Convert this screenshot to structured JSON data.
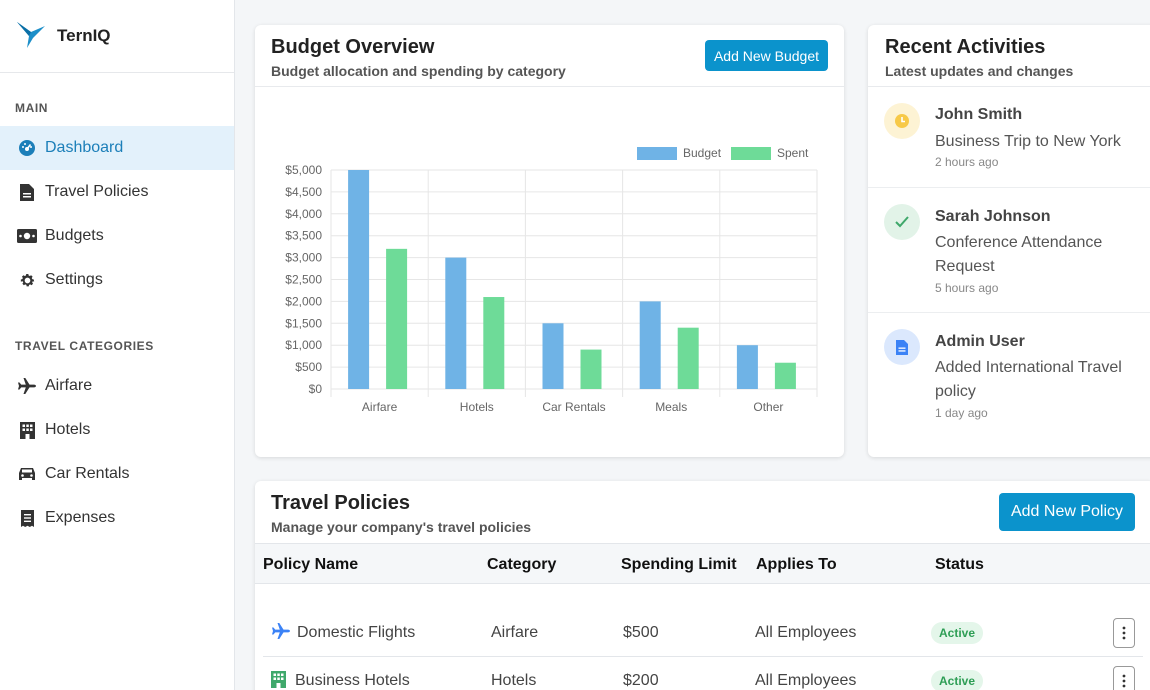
{
  "app": {
    "name": "TernIQ"
  },
  "sidebar": {
    "main_label": "MAIN",
    "main_items": [
      {
        "label": "Dashboard",
        "icon": "dashboard-icon",
        "active": true
      },
      {
        "label": "Travel Policies",
        "icon": "document-icon"
      },
      {
        "label": "Budgets",
        "icon": "money-icon"
      },
      {
        "label": "Settings",
        "icon": "gear-icon"
      }
    ],
    "categories_label": "TRAVEL CATEGORIES",
    "category_items": [
      {
        "label": "Airfare",
        "icon": "plane-icon"
      },
      {
        "label": "Hotels",
        "icon": "hotel-icon"
      },
      {
        "label": "Car Rentals",
        "icon": "car-icon"
      },
      {
        "label": "Expenses",
        "icon": "receipt-icon"
      }
    ]
  },
  "budget": {
    "title": "Budget Overview",
    "subtitle": "Budget allocation and spending by category",
    "add_button": "Add New Budget"
  },
  "chart_data": {
    "type": "bar",
    "categories": [
      "Airfare",
      "Hotels",
      "Car Rentals",
      "Meals",
      "Other"
    ],
    "series": [
      {
        "name": "Budget",
        "values": [
          5000,
          3000,
          1500,
          2000,
          1000
        ],
        "color": "#6fb3e6"
      },
      {
        "name": "Spent",
        "values": [
          3200,
          2100,
          900,
          1400,
          600
        ],
        "color": "#6edb98"
      }
    ],
    "ylim": [
      0,
      5000
    ],
    "yticks": [
      "$0",
      "$500",
      "$1,000",
      "$1,500",
      "$2,000",
      "$2,500",
      "$3,000",
      "$3,500",
      "$4,000",
      "$4,500",
      "$5,000"
    ],
    "ytick_values": [
      0,
      500,
      1000,
      1500,
      2000,
      2500,
      3000,
      3500,
      4000,
      4500,
      5000
    ],
    "legend_position": "top-right",
    "grid": true
  },
  "activities": {
    "title": "Recent Activities",
    "subtitle": "Latest updates and changes",
    "items": [
      {
        "name": "John Smith",
        "desc": "Business Trip to New York",
        "time": "2 hours ago",
        "icon": "clock-icon",
        "color": "#f7c948"
      },
      {
        "name": "Sarah Johnson",
        "desc": "Conference Attendance Request",
        "time": "5 hours ago",
        "icon": "check-icon",
        "color": "#3fa86b"
      },
      {
        "name": "Admin User",
        "desc": "Added International Travel policy",
        "time": "1 day ago",
        "icon": "document-icon",
        "color": "#3b82f6"
      }
    ]
  },
  "policies": {
    "title": "Travel Policies",
    "subtitle": "Manage your company's travel policies",
    "add_button": "Add New Policy",
    "columns": [
      "Policy Name",
      "Category",
      "Spending Limit",
      "Applies To",
      "Status"
    ],
    "rows": [
      {
        "name": "Domestic Flights",
        "category": "Airfare",
        "limit": "$500",
        "applies": "All Employees",
        "status": "Active",
        "icon": "plane-icon"
      },
      {
        "name": "Business Hotels",
        "category": "Hotels",
        "limit": "$200",
        "applies": "All Employees",
        "status": "Active",
        "icon": "hotel-icon"
      }
    ]
  }
}
